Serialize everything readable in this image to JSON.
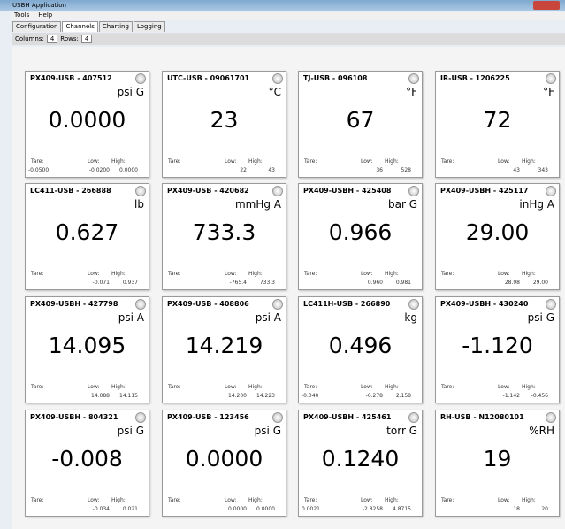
{
  "window": {
    "title": "USBH Application"
  },
  "menu": [
    "Tools",
    "Help"
  ],
  "tabs": [
    "Configuration",
    "Channels",
    "Charting",
    "Logging"
  ],
  "grid_controls": {
    "columns_label": "Columns:",
    "columns": "4",
    "rows_label": "Rows:",
    "rows": "4"
  },
  "field_labels": {
    "tare": "Tare:",
    "low": "Low:",
    "high": "High:"
  },
  "channels": [
    {
      "name": "PX409-USB - 407512",
      "unit": "psi G",
      "value": "0.0000",
      "tare": "-0.0500",
      "low": "-0.0200",
      "high": "0.0000"
    },
    {
      "name": "UTC-USB - 09061701",
      "unit": "°C",
      "value": "23",
      "low": "22",
      "high": "43"
    },
    {
      "name": "TJ-USB - 096108",
      "unit": "°F",
      "value": "67",
      "low": "36",
      "high": "528"
    },
    {
      "name": "IR-USB - 1206225",
      "unit": "°F",
      "value": "72",
      "low": "43",
      "high": "343"
    },
    {
      "name": "LC411-USB - 266888",
      "unit": "lb",
      "value": "0.627",
      "low": "-0.071",
      "high": "0.937"
    },
    {
      "name": "PX409-USB - 420682",
      "unit": "mmHg A",
      "value": "733.3",
      "low": "-765.4",
      "high": "733.3"
    },
    {
      "name": "PX409-USBH - 425408",
      "unit": "bar G",
      "value": "0.966",
      "low": "0.960",
      "high": "0.981"
    },
    {
      "name": "PX409-USBH - 425117",
      "unit": "inHg A",
      "value": "29.00",
      "low": "28.98",
      "high": "29.00"
    },
    {
      "name": "PX409-USBH - 427798",
      "unit": "psi A",
      "value": "14.095",
      "low": "14.088",
      "high": "14.115"
    },
    {
      "name": "PX409-USB - 408806",
      "unit": "psi A",
      "value": "14.219",
      "low": "14.200",
      "high": "14.223"
    },
    {
      "name": "LC411H-USB - 266890",
      "unit": "kg",
      "value": "0.496",
      "tare": "-0.040",
      "low": "-0.278",
      "high": "2.158"
    },
    {
      "name": "PX409-USBH - 430240",
      "unit": "psi G",
      "value": "-1.120",
      "low": "-1.142",
      "high": "-0.456"
    },
    {
      "name": "PX409-USBH - 804321",
      "unit": "psi G",
      "value": "-0.008",
      "low": "-0.034",
      "high": "0.021"
    },
    {
      "name": "PX409-USB - 123456",
      "unit": "psi G",
      "value": "0.0000",
      "low": "0.0000",
      "high": "0.0000"
    },
    {
      "name": "PX409-USBH - 425461",
      "unit": "torr G",
      "value": "0.1240",
      "tare": "0.0021",
      "low": "-2.8258",
      "high": "4.8715"
    },
    {
      "name": "RH-USB - N12080101",
      "unit": "%RH",
      "value": "19",
      "low": "18",
      "high": "20"
    }
  ]
}
